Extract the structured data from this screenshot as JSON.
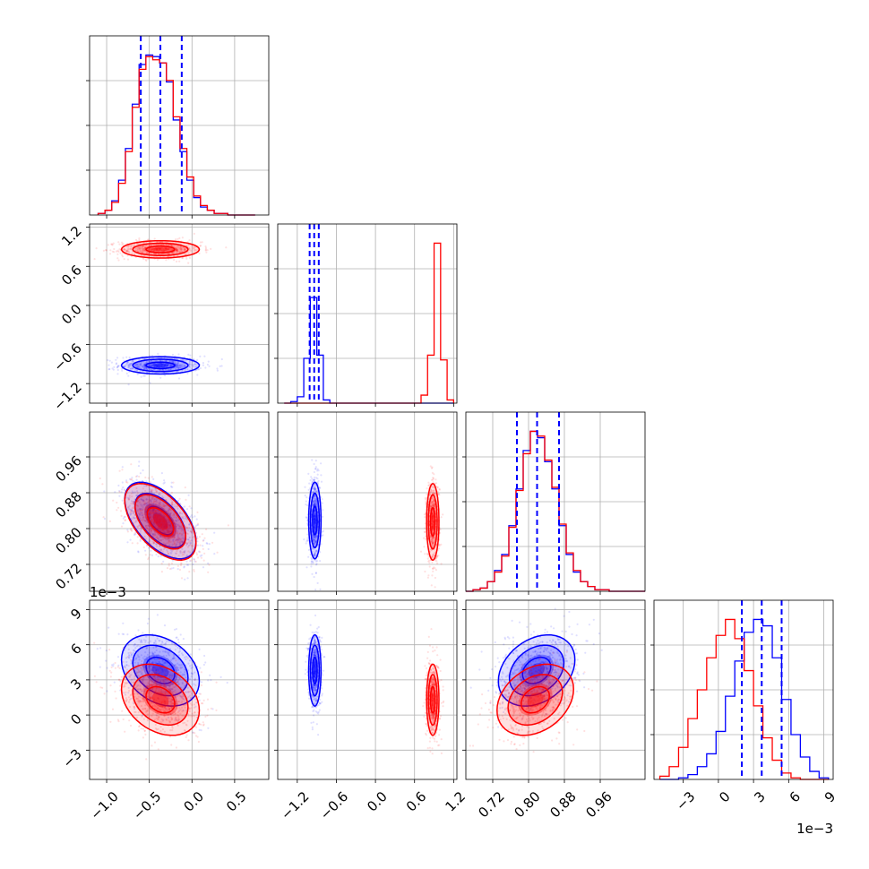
{
  "chart_data": {
    "type": "corner",
    "title": "",
    "grid": true,
    "colors": {
      "red": "#ff0000",
      "blue": "#0000ff"
    },
    "parameters": [
      {
        "index": 0,
        "range": [
          -1.2,
          0.9
        ],
        "ticks": [
          -1.0,
          -0.5,
          0.0,
          0.5
        ],
        "tick_labels": [
          "−1.0",
          "−0.5",
          "0.0",
          "0.5"
        ]
      },
      {
        "index": 1,
        "range": [
          -1.5,
          1.25
        ],
        "ticks": [
          -1.2,
          -0.6,
          0.0,
          0.6,
          1.2
        ],
        "tick_labels": [
          "−1.2",
          "−0.6",
          "0.0",
          "0.6",
          "1.2"
        ]
      },
      {
        "index": 2,
        "range": [
          0.66,
          1.06
        ],
        "ticks": [
          0.72,
          0.8,
          0.88,
          0.96
        ],
        "tick_labels": [
          "0.72",
          "0.80",
          "0.88",
          "0.96"
        ]
      },
      {
        "index": 3,
        "range": [
          -0.0055,
          0.0098
        ],
        "ticks": [
          -0.003,
          0.0,
          0.003,
          0.006,
          0.009
        ],
        "tick_labels": [
          "−3",
          "0",
          "3",
          "6",
          "9"
        ],
        "offset_label": "1e−3"
      }
    ],
    "histograms": [
      {
        "param": 0,
        "bins": [
          -1.1,
          -1.02,
          -0.94,
          -0.86,
          -0.78,
          -0.7,
          -0.62,
          -0.54,
          -0.46,
          -0.38,
          -0.3,
          -0.22,
          -0.14,
          -0.06,
          0.02,
          0.1,
          0.18,
          0.26,
          0.34,
          0.42,
          0.5,
          0.58,
          0.66,
          0.74
        ],
        "red": [
          1,
          3,
          8,
          20,
          40,
          68,
          92,
          100,
          98,
          96,
          85,
          62,
          42,
          24,
          12,
          6,
          3,
          1,
          1,
          0,
          0,
          0,
          0
        ],
        "blue": [
          1,
          3,
          9,
          22,
          42,
          70,
          95,
          101,
          100,
          96,
          84,
          60,
          40,
          22,
          11,
          5,
          3,
          1,
          1,
          0,
          0,
          0,
          0
        ],
        "quantiles": [
          -0.6,
          -0.37,
          -0.12
        ]
      },
      {
        "param": 1,
        "bins": [
          -1.4,
          -1.3,
          -1.2,
          -1.1,
          -1.0,
          -0.9,
          -0.8,
          -0.7,
          -0.6,
          -0.5,
          -0.4,
          -0.3,
          -0.2,
          -0.1,
          0.0,
          0.1,
          0.2,
          0.3,
          0.4,
          0.5,
          0.6,
          0.7,
          0.8,
          0.9,
          1.0,
          1.1,
          1.2
        ],
        "red": [
          0,
          0,
          0,
          0,
          0,
          0,
          0,
          0,
          0,
          0,
          0,
          0,
          0,
          0,
          0,
          0,
          0,
          0,
          0,
          0,
          0,
          5,
          30,
          100,
          27,
          2
        ],
        "blue": [
          0,
          1,
          4,
          28,
          66,
          30,
          2,
          0,
          0,
          0,
          0,
          0,
          0,
          0,
          0,
          0,
          0,
          0,
          0,
          0,
          0,
          0,
          0,
          0,
          0,
          0
        ],
        "quantiles": [
          -1.01,
          -0.94,
          -0.87
        ]
      },
      {
        "param": 2,
        "bins": [
          0.66,
          0.676,
          0.692,
          0.708,
          0.724,
          0.74,
          0.756,
          0.772,
          0.788,
          0.804,
          0.82,
          0.836,
          0.852,
          0.868,
          0.884,
          0.9,
          0.916,
          0.932,
          0.948,
          0.964,
          0.98,
          0.996,
          1.012,
          1.028,
          1.044,
          1.06
        ],
        "red": [
          0,
          1,
          2,
          6,
          12,
          22,
          40,
          63,
          86,
          100,
          97,
          82,
          65,
          42,
          24,
          13,
          6,
          3,
          1,
          1,
          0,
          0,
          0,
          0,
          0
        ],
        "blue": [
          0,
          1,
          2,
          6,
          13,
          23,
          41,
          64,
          88,
          100,
          96,
          81,
          64,
          41,
          23,
          12,
          6,
          3,
          1,
          1,
          0,
          0,
          0,
          0,
          0
        ],
        "quantiles": [
          0.774,
          0.819,
          0.868
        ]
      },
      {
        "param": 3,
        "bins": [
          -0.005,
          -0.0042,
          -0.0034,
          -0.0026,
          -0.0018,
          -0.001,
          -0.0002,
          0.0006,
          0.0014,
          0.0022,
          0.003,
          0.0038,
          0.0046,
          0.0054,
          0.0062,
          0.007,
          0.0078,
          0.0086,
          0.0094
        ],
        "red": [
          2,
          8,
          20,
          38,
          56,
          76,
          90,
          100,
          88,
          68,
          46,
          26,
          12,
          4,
          1,
          0,
          0,
          0
        ],
        "blue": [
          0,
          0,
          1,
          3,
          8,
          16,
          30,
          52,
          74,
          92,
          100,
          96,
          76,
          50,
          28,
          14,
          5,
          1
        ],
        "quantiles": [
          0.002,
          0.0037,
          0.0054
        ]
      }
    ],
    "scatter_panels": [
      {
        "x": 0,
        "y": 1,
        "red": {
          "mean": [
            -0.37,
            0.86
          ],
          "sd": [
            0.24,
            0.07
          ],
          "rho": 0.0
        },
        "blue": {
          "mean": [
            -0.37,
            -0.92
          ],
          "sd": [
            0.24,
            0.07
          ],
          "rho": 0.0
        }
      },
      {
        "x": 0,
        "y": 2,
        "red": {
          "mean": [
            -0.37,
            0.815
          ],
          "sd": [
            0.22,
            0.045
          ],
          "rho": -0.55
        },
        "blue": {
          "mean": [
            -0.37,
            0.818
          ],
          "sd": [
            0.22,
            0.045
          ],
          "rho": -0.55
        }
      },
      {
        "x": 1,
        "y": 2,
        "red": {
          "mean": [
            0.88,
            0.815
          ],
          "sd": [
            0.05,
            0.045
          ],
          "rho": 0.0
        },
        "blue": {
          "mean": [
            -0.93,
            0.818
          ],
          "sd": [
            0.05,
            0.045
          ],
          "rho": 0.0
        }
      },
      {
        "x": 0,
        "y": 3,
        "red": {
          "mean": [
            -0.37,
            0.0013
          ],
          "sd": [
            0.24,
            0.0016
          ],
          "rho": -0.3
        },
        "blue": {
          "mean": [
            -0.37,
            0.0038
          ],
          "sd": [
            0.24,
            0.0016
          ],
          "rho": -0.3
        }
      },
      {
        "x": 1,
        "y": 3,
        "red": {
          "mean": [
            0.88,
            0.0013
          ],
          "sd": [
            0.05,
            0.0016
          ],
          "rho": 0.0
        },
        "blue": {
          "mean": [
            -0.93,
            0.0038
          ],
          "sd": [
            0.05,
            0.0016
          ],
          "rho": 0.0
        }
      },
      {
        "x": 2,
        "y": 3,
        "red": {
          "mean": [
            0.815,
            0.0013
          ],
          "sd": [
            0.045,
            0.0016
          ],
          "rho": 0.3
        },
        "blue": {
          "mean": [
            0.818,
            0.0038
          ],
          "sd": [
            0.045,
            0.0016
          ],
          "rho": 0.3
        }
      }
    ]
  }
}
